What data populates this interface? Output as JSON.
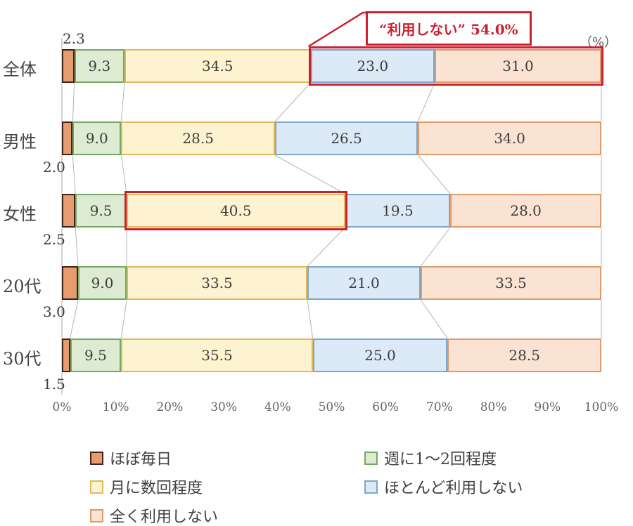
{
  "chart_data": {
    "type": "bar",
    "stacked": true,
    "orientation": "horizontal",
    "unit_label": "（%）",
    "categories": [
      "全体",
      "男性",
      "女性",
      "20代",
      "30代"
    ],
    "series": [
      {
        "name": "ほぼ毎日",
        "fill": "#e69c6e",
        "border": "#40241a",
        "values": [
          2.3,
          2.0,
          2.5,
          3.0,
          1.5
        ]
      },
      {
        "name": "週に1〜2回程度",
        "fill": "#ddebd2",
        "border": "#76a865",
        "values": [
          9.3,
          9.0,
          9.5,
          9.0,
          9.5
        ]
      },
      {
        "name": "月に数回程度",
        "fill": "#fdf3d0",
        "border": "#e0b95c",
        "values": [
          34.5,
          28.5,
          40.5,
          33.5,
          35.5
        ]
      },
      {
        "name": "ほとんど利用しない",
        "fill": "#dce9f6",
        "border": "#7da7cc",
        "values": [
          23.0,
          26.5,
          19.5,
          21.0,
          25.0
        ]
      },
      {
        "name": "全く利用しない",
        "fill": "#fae3d2",
        "border": "#dd9a6b",
        "values": [
          31.0,
          34.0,
          28.0,
          33.5,
          28.5
        ]
      }
    ],
    "x_ticks": [
      "0%",
      "10%",
      "20%",
      "30%",
      "40%",
      "50%",
      "60%",
      "70%",
      "80%",
      "90%",
      "100%"
    ],
    "xlim": [
      0,
      100
    ],
    "annotation": {
      "text": "“利用しない” 54.0%",
      "color": "#cc2030"
    },
    "highlights": [
      {
        "row": 0,
        "from_series": 3,
        "to_series": 4
      },
      {
        "row": 2,
        "from_series": 2,
        "to_series": 2
      }
    ]
  }
}
